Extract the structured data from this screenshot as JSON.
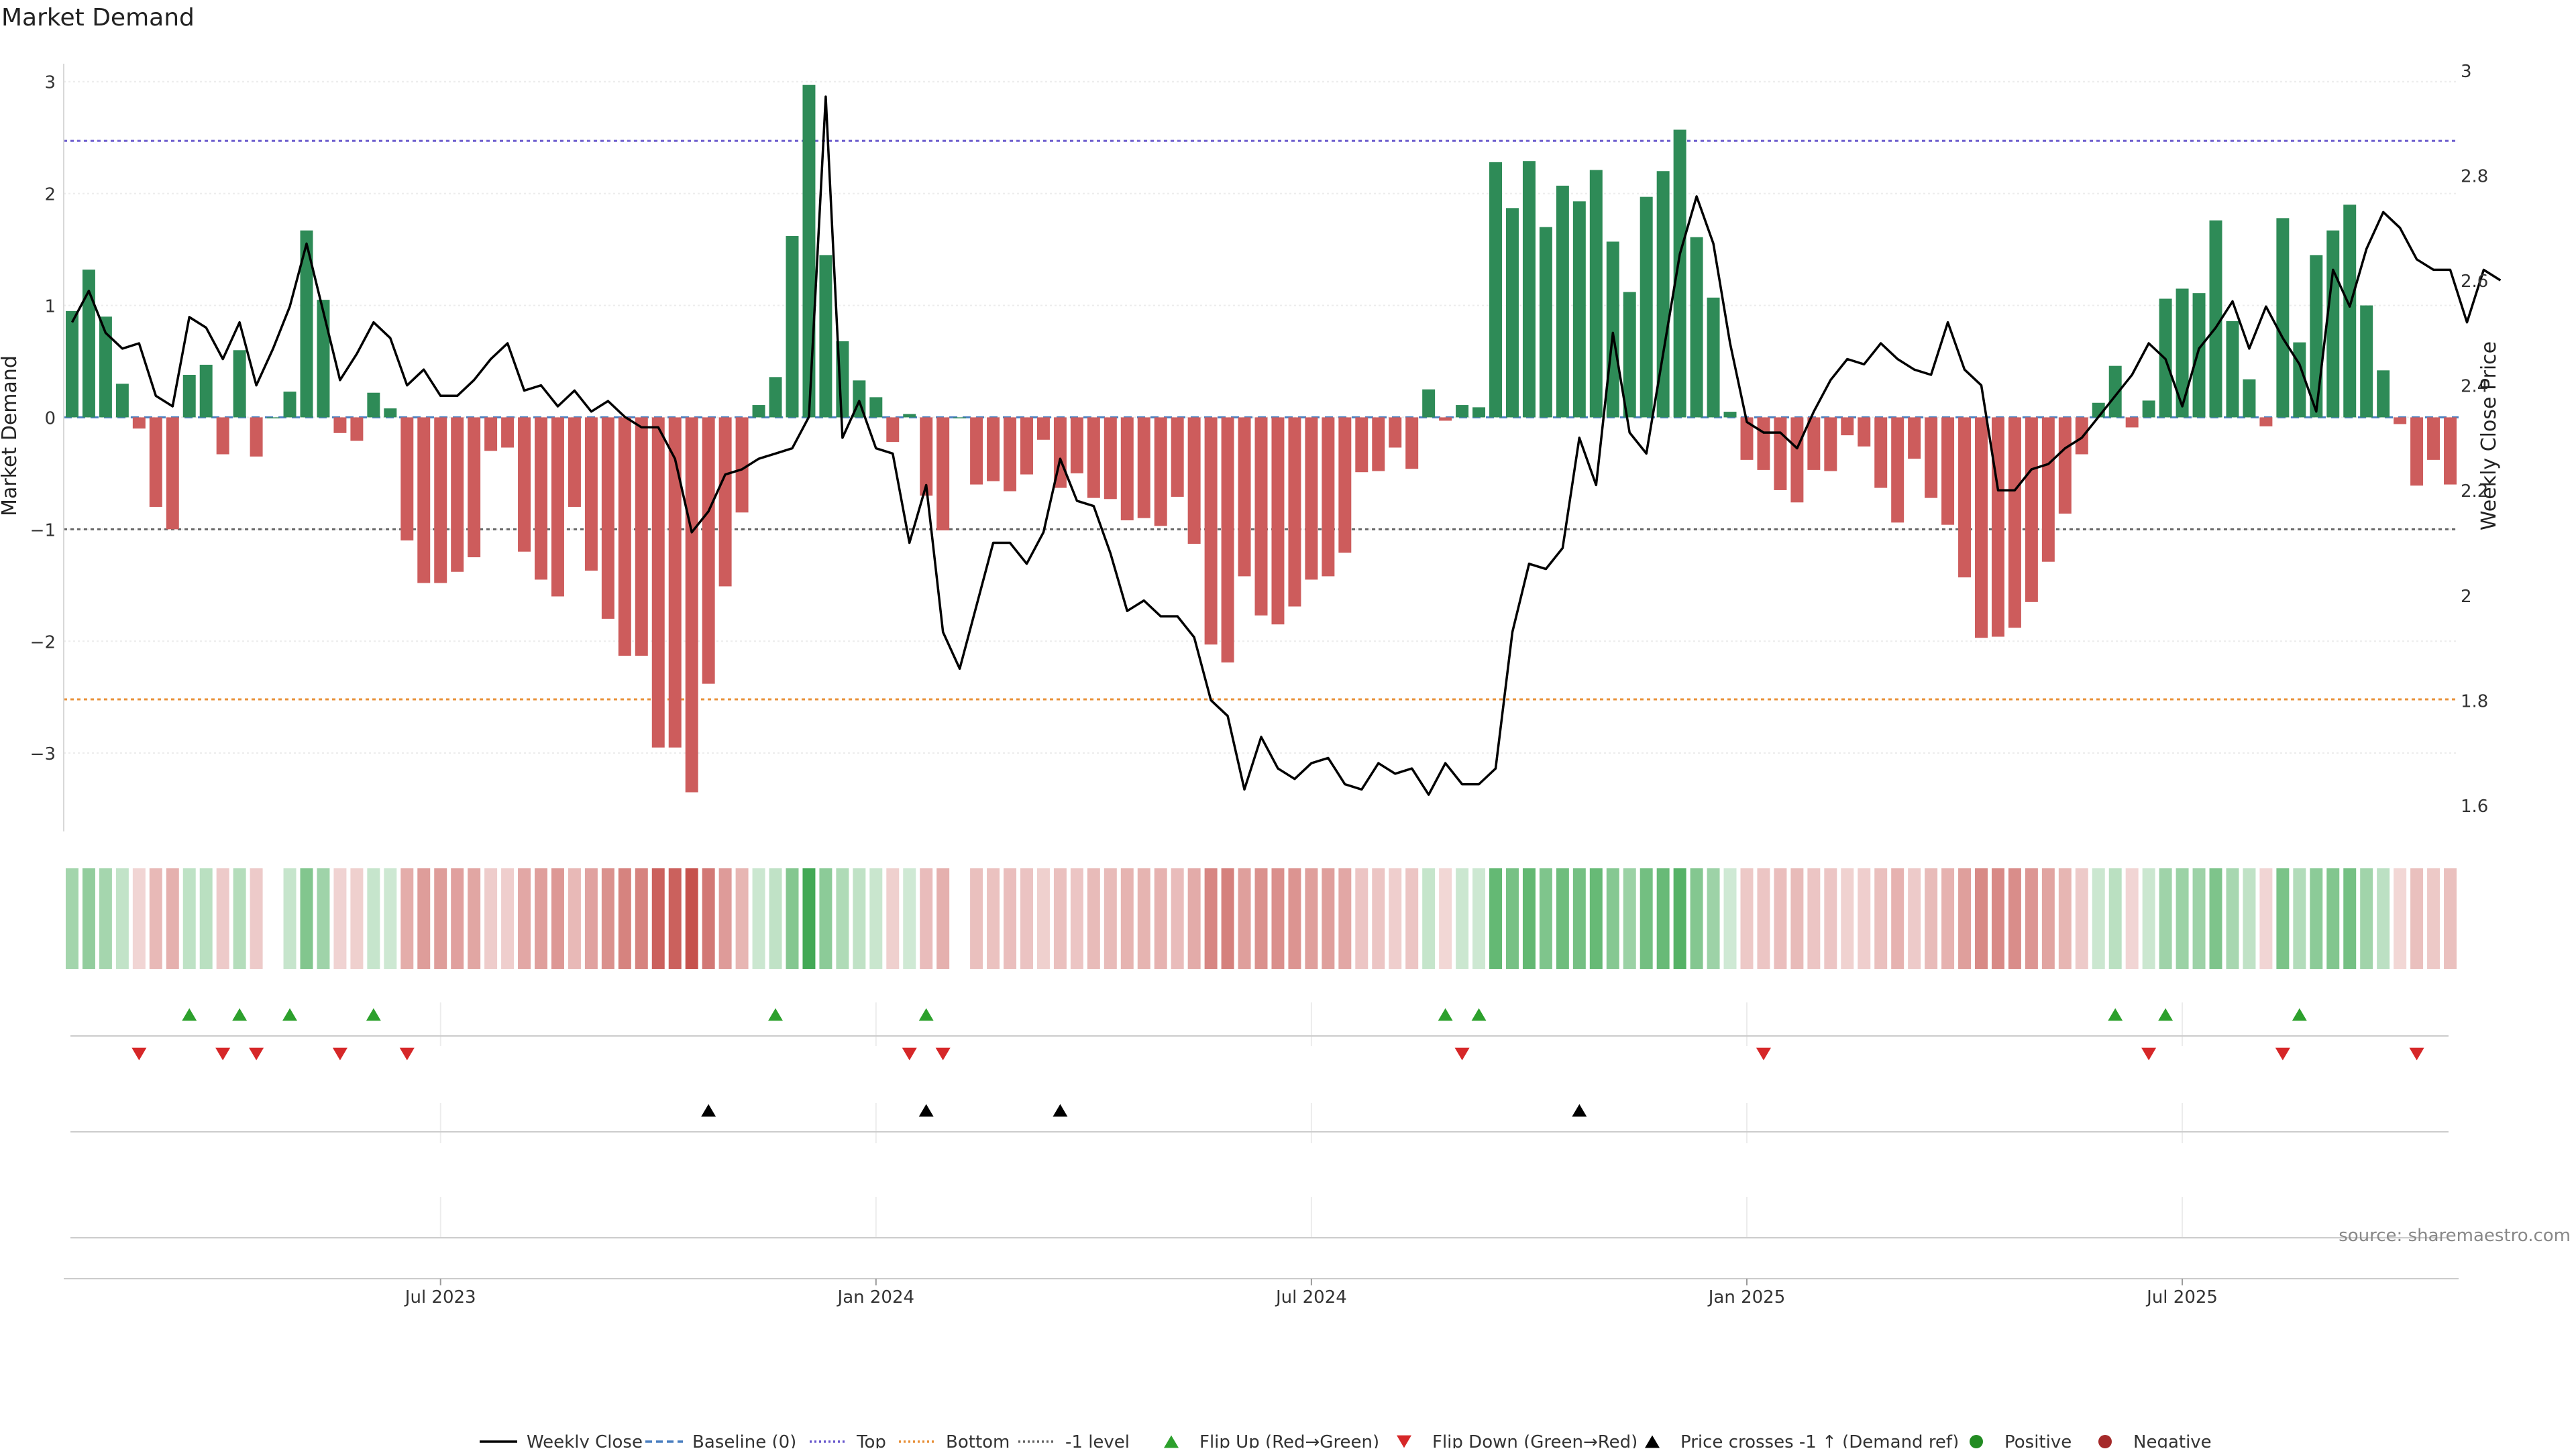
{
  "chart_data": {
    "type": "bar",
    "title": "Market Demand",
    "ylabel": "Market Demand",
    "y2label": "Weekly Close Price",
    "ylim": [
      -3.7,
      3.1
    ],
    "y2lim": [
      1.55,
      3.0
    ],
    "yticks": [
      -3,
      -2,
      -1,
      0,
      1,
      2,
      3
    ],
    "yticklabels": [
      "−3",
      "−2",
      "−1",
      "0",
      "1",
      "2",
      "3"
    ],
    "y2ticks": [
      1.6,
      1.8,
      2.0,
      2.2,
      2.4,
      2.6,
      2.8,
      3.0
    ],
    "y2ticklabels": [
      "1.6",
      "1.8",
      "2",
      "2.2",
      "2.4",
      "2.6",
      "2.8",
      "3"
    ],
    "xticks": [
      {
        "index": 22,
        "label": "Jul 2023"
      },
      {
        "index": 48,
        "label": "Jan 2024"
      },
      {
        "index": 74,
        "label": "Jul 2024"
      },
      {
        "index": 100,
        "label": "Jan 2025"
      },
      {
        "index": 126,
        "label": "Jul 2025"
      }
    ],
    "reference_lines": [
      {
        "name": "Top",
        "value": 2.47,
        "color": "#6a5acd"
      },
      {
        "name": "Bottom",
        "value": -2.52,
        "color": "#e8913a"
      },
      {
        "name": "-1 level",
        "value": -1,
        "color": "#666666"
      },
      {
        "name": "Baseline (0)",
        "value": 0,
        "color": "#4a7fc0"
      }
    ],
    "colors": {
      "positive": "#2e8b57",
      "negative": "#cd5c5c",
      "close": "#000000",
      "flip_up": "#2ca02c",
      "flip_down": "#d62728",
      "cross": "#000000"
    },
    "demand": [
      0.95,
      1.32,
      0.9,
      0.3,
      -0.1,
      -0.8,
      -1.0,
      0.38,
      0.47,
      -0.33,
      0.6,
      -0.35,
      0.0,
      0.23,
      1.67,
      1.05,
      -0.14,
      -0.21,
      0.22,
      0.08,
      -1.1,
      -1.48,
      -1.48,
      -1.38,
      -1.25,
      -0.3,
      -0.27,
      -1.2,
      -1.45,
      -1.6,
      -0.8,
      -1.37,
      -1.8,
      -2.13,
      -2.13,
      -2.95,
      -2.95,
      -3.35,
      -2.38,
      -1.51,
      -0.85,
      0.11,
      0.36,
      1.62,
      2.97,
      1.45,
      0.68,
      0.33,
      0.18,
      -0.22,
      0.03,
      -0.7,
      -1.01,
      0.0,
      -0.6,
      -0.57,
      -0.66,
      -0.51,
      -0.2,
      -0.63,
      -0.5,
      -0.72,
      -0.73,
      -0.92,
      -0.9,
      -0.97,
      -0.71,
      -1.13,
      -2.03,
      -2.19,
      -1.42,
      -1.77,
      -1.85,
      -1.69,
      -1.45,
      -1.42,
      -1.21,
      -0.49,
      -0.48,
      -0.27,
      -0.46,
      0.25,
      -0.03,
      0.11,
      0.09,
      2.28,
      1.87,
      2.29,
      1.7,
      2.07,
      1.93,
      2.21,
      1.57,
      1.12,
      1.97,
      2.2,
      2.57,
      1.61,
      1.07,
      0.05,
      -0.38,
      -0.47,
      -0.65,
      -0.76,
      -0.47,
      -0.48,
      -0.16,
      -0.26,
      -0.63,
      -0.94,
      -0.37,
      -0.72,
      -0.96,
      -1.43,
      -1.97,
      -1.96,
      -1.88,
      -1.65,
      -1.29,
      -0.86,
      -0.33,
      0.13,
      0.46,
      -0.09,
      0.15,
      1.06,
      1.15,
      1.11,
      1.76,
      0.86,
      0.34,
      -0.08,
      1.78,
      0.67,
      1.45,
      1.67,
      1.9,
      1.0,
      0.42,
      -0.06,
      -0.61,
      -0.38,
      -0.6
    ],
    "close": [
      2.52,
      2.58,
      2.5,
      2.47,
      2.48,
      2.38,
      2.36,
      2.53,
      2.51,
      2.45,
      2.52,
      2.4,
      2.47,
      2.55,
      2.67,
      2.54,
      2.41,
      2.46,
      2.52,
      2.49,
      2.4,
      2.43,
      2.38,
      2.38,
      2.41,
      2.45,
      2.48,
      2.39,
      2.4,
      2.36,
      2.39,
      2.35,
      2.37,
      2.34,
      2.32,
      2.32,
      2.26,
      2.12,
      2.16,
      2.23,
      2.24,
      2.26,
      2.27,
      2.28,
      2.34,
      2.95,
      2.3,
      2.37,
      2.28,
      2.27,
      2.1,
      2.21,
      1.93,
      1.86,
      1.98,
      2.1,
      2.1,
      2.06,
      2.12,
      2.26,
      2.18,
      2.17,
      2.08,
      1.97,
      1.99,
      1.96,
      1.96,
      1.92,
      1.8,
      1.77,
      1.63,
      1.73,
      1.67,
      1.65,
      1.68,
      1.69,
      1.64,
      1.63,
      1.68,
      1.66,
      1.67,
      1.62,
      1.68,
      1.64,
      1.64,
      1.67,
      1.93,
      2.06,
      2.05,
      2.09,
      2.3,
      2.21,
      2.5,
      2.31,
      2.27,
      2.46,
      2.65,
      2.76,
      2.67,
      2.48,
      2.33,
      2.31,
      2.31,
      2.28,
      2.35,
      2.41,
      2.45,
      2.44,
      2.48,
      2.45,
      2.43,
      2.42,
      2.52,
      2.43,
      2.4,
      2.2,
      2.2,
      2.24,
      2.25,
      2.28,
      2.3,
      2.34,
      2.38,
      2.42,
      2.48,
      2.45,
      2.36,
      2.47,
      2.51,
      2.56,
      2.47,
      2.55,
      2.49,
      2.44,
      2.35,
      2.62,
      2.55,
      2.66,
      2.73,
      2.7,
      2.64,
      2.62,
      2.62,
      2.52,
      2.62,
      2.6
    ],
    "flip_up": [
      7,
      10,
      13,
      18,
      42,
      51,
      82,
      84,
      122,
      125,
      133
    ],
    "flip_down": [
      4,
      9,
      11,
      16,
      20,
      50,
      52,
      83,
      101,
      124,
      132,
      140
    ],
    "price_cross_up": [
      38,
      51,
      59,
      90
    ],
    "legend": [
      {
        "label": "Weekly Close",
        "kind": "line",
        "color": "#000000",
        "dash": ""
      },
      {
        "label": "Baseline (0)",
        "kind": "line",
        "color": "#4a7fc0",
        "dash": "10,6"
      },
      {
        "label": "Top",
        "kind": "line",
        "color": "#6a5acd",
        "dash": "3,4"
      },
      {
        "label": "Bottom",
        "kind": "line",
        "color": "#e8913a",
        "dash": "3,4"
      },
      {
        "label": "-1 level",
        "kind": "line",
        "color": "#666666",
        "dash": "3,4"
      },
      {
        "label": "Flip Up (Red→Green)",
        "kind": "tri-up",
        "color": "#2ca02c"
      },
      {
        "label": "Flip Down (Green→Red)",
        "kind": "tri-down",
        "color": "#d62728"
      },
      {
        "label": "Price crosses -1 ↑ (Demand ref)",
        "kind": "tri-up",
        "color": "#000000"
      },
      {
        "label": "Positive",
        "kind": "dot",
        "color": "#228b22"
      },
      {
        "label": "Negative",
        "kind": "dot",
        "color": "#a52a2a"
      }
    ],
    "source": "source: sharemaestro.com"
  }
}
